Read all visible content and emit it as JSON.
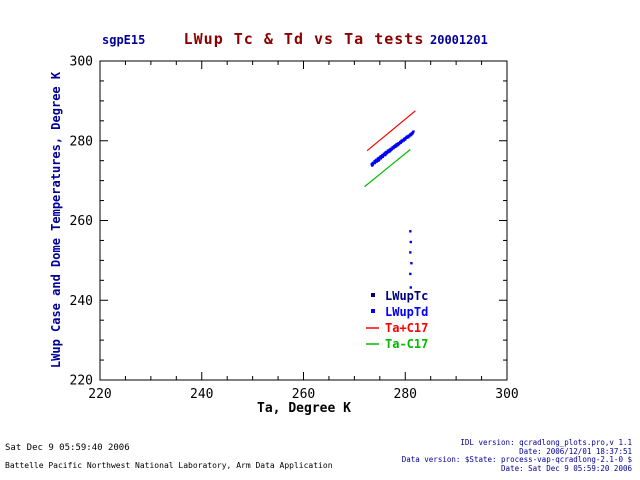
{
  "chart_data": {
    "type": "scatter",
    "station": "sgpE15",
    "title": "LWup Tc & Td vs Ta tests",
    "date": "20001201",
    "xlabel": "Ta, Degree K",
    "ylabel": "LWup Case and Dome Temperatures, Degree K",
    "xlim": [
      220,
      300
    ],
    "ylim": [
      220,
      300
    ],
    "xticks": [
      220,
      240,
      260,
      280,
      300
    ],
    "yticks": [
      220,
      240,
      260,
      280,
      300
    ],
    "minor_tick_step": 5,
    "grid": false,
    "legend_position": "inside lower-right",
    "series": [
      {
        "name": "LWupTc",
        "style": "scatter",
        "color": "#000080",
        "points": [
          [
            273.6,
            274.0
          ],
          [
            274.0,
            274.4
          ],
          [
            274.4,
            274.8
          ],
          [
            274.8,
            275.2
          ],
          [
            275.2,
            275.6
          ],
          [
            275.6,
            276.0
          ],
          [
            276.0,
            276.4
          ],
          [
            276.4,
            276.9
          ],
          [
            276.7,
            277.2
          ],
          [
            277.0,
            277.5
          ],
          [
            277.3,
            277.8
          ],
          [
            277.6,
            278.1
          ],
          [
            277.9,
            278.4
          ],
          [
            278.2,
            278.6
          ],
          [
            278.5,
            278.9
          ],
          [
            278.8,
            279.2
          ],
          [
            279.1,
            279.5
          ],
          [
            279.4,
            279.8
          ],
          [
            279.7,
            280.1
          ],
          [
            280.0,
            280.4
          ],
          [
            280.4,
            280.8
          ],
          [
            280.8,
            281.2
          ],
          [
            281.2,
            281.6
          ],
          [
            276.8,
            277.4
          ],
          [
            277.1,
            277.6
          ],
          [
            277.4,
            278.0
          ],
          [
            277.7,
            278.2
          ],
          [
            278.0,
            278.5
          ],
          [
            278.3,
            278.8
          ]
        ]
      },
      {
        "name": "LWupTd",
        "style": "scatter",
        "color": "#0000ff",
        "points": [
          [
            273.4,
            274.1
          ],
          [
            273.6,
            274.4
          ],
          [
            273.8,
            274.5
          ],
          [
            274.0,
            274.9
          ],
          [
            274.1,
            274.6
          ],
          [
            274.3,
            275.2
          ],
          [
            274.5,
            275.1
          ],
          [
            274.6,
            275.5
          ],
          [
            274.8,
            275.7
          ],
          [
            275.0,
            275.6
          ],
          [
            275.1,
            276.0
          ],
          [
            275.3,
            276.1
          ],
          [
            275.5,
            276.4
          ],
          [
            275.6,
            276.2
          ],
          [
            275.8,
            276.7
          ],
          [
            276.0,
            276.8
          ],
          [
            276.1,
            277.0
          ],
          [
            276.3,
            277.2
          ],
          [
            276.5,
            277.1
          ],
          [
            276.6,
            277.5
          ],
          [
            276.8,
            277.6
          ],
          [
            277.0,
            277.8
          ],
          [
            277.2,
            278.0
          ],
          [
            277.3,
            277.9
          ],
          [
            277.5,
            278.3
          ],
          [
            277.7,
            278.4
          ],
          [
            277.8,
            278.6
          ],
          [
            278.0,
            278.8
          ],
          [
            278.2,
            278.7
          ],
          [
            278.3,
            279.1
          ],
          [
            278.5,
            279.2
          ],
          [
            278.7,
            279.4
          ],
          [
            278.8,
            279.3
          ],
          [
            279.0,
            279.7
          ],
          [
            279.2,
            279.8
          ],
          [
            279.3,
            280.0
          ],
          [
            279.5,
            280.2
          ],
          [
            279.7,
            280.1
          ],
          [
            279.8,
            280.5
          ],
          [
            280.0,
            280.6
          ],
          [
            280.2,
            280.8
          ],
          [
            280.3,
            281.0
          ],
          [
            280.5,
            281.1
          ],
          [
            280.7,
            281.3
          ],
          [
            280.8,
            281.2
          ],
          [
            281.0,
            281.6
          ],
          [
            281.2,
            281.7
          ],
          [
            281.3,
            281.9
          ],
          [
            281.5,
            282.1
          ],
          [
            281.6,
            282.3
          ],
          [
            273.5,
            273.8
          ],
          [
            274.2,
            275.0
          ],
          [
            274.9,
            275.3
          ],
          [
            275.4,
            275.9
          ],
          [
            276.2,
            276.6
          ],
          [
            276.9,
            277.3
          ],
          [
            277.6,
            278.1
          ],
          [
            278.4,
            278.9
          ],
          [
            279.1,
            279.5
          ],
          [
            279.9,
            280.3
          ],
          [
            280.6,
            280.9
          ],
          [
            281.1,
            281.4
          ],
          [
            274.7,
            275.0
          ],
          [
            275.9,
            276.5
          ],
          [
            277.1,
            277.7
          ],
          [
            278.6,
            279.0
          ],
          [
            280.1,
            280.7
          ],
          [
            281.4,
            281.8
          ],
          [
            281.0,
            257.3
          ],
          [
            281.1,
            254.6
          ],
          [
            281.0,
            252.0
          ],
          [
            281.2,
            249.3
          ],
          [
            281.0,
            246.6
          ],
          [
            281.1,
            243.2
          ]
        ]
      },
      {
        "name": "Ta+C17",
        "style": "line",
        "color": "#ff0000",
        "points": [
          [
            272.5,
            277.5
          ],
          [
            282.0,
            287.5
          ]
        ]
      },
      {
        "name": "Ta-C17",
        "style": "line",
        "color": "#00bb00",
        "points": [
          [
            272.0,
            268.5
          ],
          [
            281.0,
            277.8
          ]
        ]
      }
    ]
  },
  "footer": {
    "generated": "Sat Dec  9 05:59:40 2006",
    "org": "Battelle Pacific Northwest National Laboratory, Arm Data Application",
    "idl_version": "IDL version: qcradlong_plots.pro,v 1.1",
    "idl_date": "Date: 2006/12/01 18:37:51",
    "data_version": "Data version: $State: process-vap-qcradlong-2.1-0 $",
    "data_date": "Date: Sat Dec  9 05:59:20 2006"
  },
  "colors": {
    "accent_navy": "#000099",
    "title_maroon": "#8b0000",
    "axis_black": "#000000"
  }
}
